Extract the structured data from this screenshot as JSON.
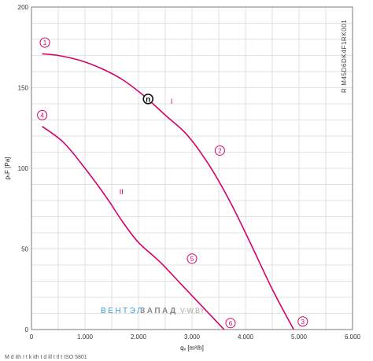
{
  "chart_data": {
    "type": "line",
    "model_code": "R M45D6DK4F1RK001",
    "xlabel": "qᵥ [m³/h]",
    "ylabel": "pₛF [Pa]",
    "xlim": [
      0,
      6000
    ],
    "ylim": [
      0,
      200
    ],
    "x_ticks": [
      0,
      1000,
      2000,
      3000,
      4000,
      5000,
      6000
    ],
    "x_tick_labels": [
      "0",
      "1.000",
      "2.000",
      "3.000",
      "4.000",
      "5.000",
      "6.000"
    ],
    "y_ticks": [
      0,
      50,
      100,
      150,
      200
    ],
    "y_tick_labels": [
      "0",
      "50",
      "100",
      "150",
      "200"
    ],
    "grid": true,
    "line_color": "#d6006b",
    "series": [
      {
        "name": "I",
        "x": [
          200,
          500,
          900,
          1300,
          1700,
          2100,
          2500,
          2900,
          3300,
          3700,
          4100,
          4500,
          4900
        ],
        "y": [
          171,
          170,
          167,
          162,
          155,
          145,
          133,
          121,
          103,
          80,
          53,
          25,
          0
        ]
      },
      {
        "name": "II",
        "x": [
          200,
          600,
          1000,
          1400,
          1700,
          2000,
          2400,
          2800,
          3200,
          3600
        ],
        "y": [
          126,
          116,
          100,
          82,
          67,
          54,
          42,
          28,
          14,
          0
        ]
      }
    ],
    "numbered_points": [
      {
        "label": "1",
        "x": 250,
        "y": 178
      },
      {
        "label": "2",
        "x": 3520,
        "y": 111
      },
      {
        "label": "3",
        "x": 5070,
        "y": 5
      },
      {
        "label": "4",
        "x": 200,
        "y": 133
      },
      {
        "label": "5",
        "x": 3000,
        "y": 44
      },
      {
        "label": "6",
        "x": 3720,
        "y": 4
      }
    ],
    "curve_labels": [
      {
        "label": "I",
        "x": 2620,
        "y": 140
      },
      {
        "label": "II",
        "x": 1680,
        "y": 84
      }
    ],
    "operating_point": {
      "label": "n",
      "x": 2180,
      "y": 143
    }
  },
  "watermark": {
    "left_text": "ВЕНТЭЛ",
    "right_text": "ЗАПАД",
    "url": "V-W.BY"
  },
  "footnote": "M               d    ith I t k         ith t            d ill   t    tl  t  ISO 5801"
}
